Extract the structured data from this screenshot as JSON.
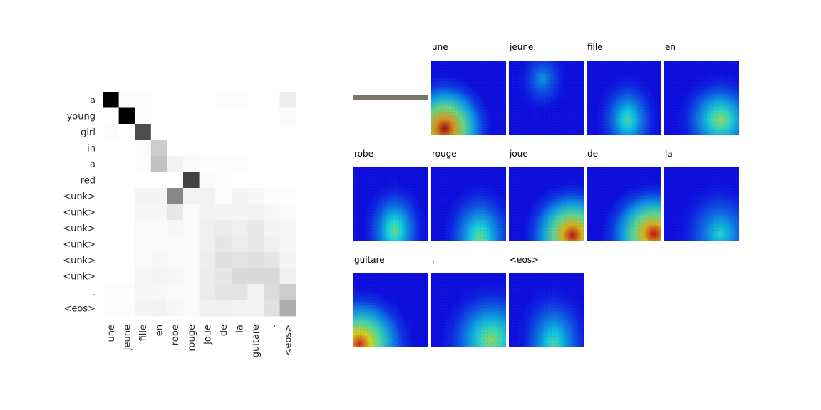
{
  "chart_data": [
    {
      "type": "heatmap",
      "title": "",
      "xlabel": "",
      "ylabel": "",
      "x_tick_labels": [
        "une",
        "jeune",
        "fille",
        "en",
        "robe",
        "rouge",
        "joue",
        "de",
        "la",
        "guitare",
        ".",
        "<eos>"
      ],
      "y_tick_labels": [
        "a",
        "young",
        "girl",
        "in",
        "a",
        "red",
        "<unk>",
        "<unk>",
        "<unk>",
        "<unk>",
        "<unk>",
        "<unk>",
        ".",
        "<eos>"
      ],
      "colormap": "Greys",
      "values": [
        [
          1.0,
          0.01,
          0.01,
          0.0,
          0.0,
          0.0,
          0.0,
          0.01,
          0.01,
          0.0,
          0.0,
          0.07
        ],
        [
          0.0,
          1.0,
          0.01,
          0.0,
          0.0,
          0.0,
          0.0,
          0.0,
          0.0,
          0.0,
          0.0,
          0.02
        ],
        [
          0.01,
          0.0,
          0.7,
          0.0,
          0.0,
          0.0,
          0.0,
          0.0,
          0.0,
          0.0,
          0.0,
          0.0
        ],
        [
          0.0,
          0.0,
          0.01,
          0.2,
          0.0,
          0.0,
          0.0,
          0.0,
          0.0,
          0.0,
          0.0,
          0.0
        ],
        [
          0.0,
          0.0,
          0.01,
          0.24,
          0.05,
          0.02,
          0.01,
          0.01,
          0.01,
          0.0,
          0.0,
          0.0
        ],
        [
          0.0,
          0.0,
          0.0,
          0.0,
          0.0,
          0.74,
          0.02,
          0.01,
          0.0,
          0.0,
          0.0,
          0.0
        ],
        [
          0.0,
          0.0,
          0.04,
          0.04,
          0.47,
          0.05,
          0.05,
          0.01,
          0.04,
          0.03,
          0.01,
          0.01
        ],
        [
          0.0,
          0.0,
          0.03,
          0.03,
          0.09,
          0.02,
          0.05,
          0.04,
          0.04,
          0.05,
          0.03,
          0.02
        ],
        [
          0.0,
          0.0,
          0.02,
          0.02,
          0.03,
          0.02,
          0.06,
          0.08,
          0.06,
          0.09,
          0.04,
          0.03
        ],
        [
          0.0,
          0.0,
          0.02,
          0.02,
          0.02,
          0.02,
          0.06,
          0.1,
          0.07,
          0.09,
          0.06,
          0.03
        ],
        [
          0.0,
          0.0,
          0.02,
          0.03,
          0.02,
          0.02,
          0.07,
          0.12,
          0.11,
          0.12,
          0.1,
          0.04
        ],
        [
          0.0,
          0.0,
          0.03,
          0.04,
          0.03,
          0.02,
          0.08,
          0.1,
          0.15,
          0.15,
          0.15,
          0.06
        ],
        [
          0.01,
          0.01,
          0.03,
          0.03,
          0.02,
          0.02,
          0.08,
          0.11,
          0.11,
          0.05,
          0.14,
          0.2
        ],
        [
          0.01,
          0.01,
          0.04,
          0.05,
          0.03,
          0.02,
          0.06,
          0.06,
          0.05,
          0.05,
          0.12,
          0.32
        ]
      ]
    },
    {
      "type": "heatmap",
      "title": "",
      "colormap": "jet",
      "panels": [
        {
          "label": "",
          "kind": "bar"
        },
        {
          "label": "une",
          "peak": [
            0.18,
            0.92
          ],
          "spread": 0.55,
          "max": 0.95
        },
        {
          "label": "jeune",
          "peak": [
            0.45,
            0.25
          ],
          "spread": 0.45,
          "max": 0.3
        },
        {
          "label": "fille",
          "peak": [
            0.55,
            0.8
          ],
          "spread": 0.55,
          "max": 0.45
        },
        {
          "label": "en",
          "peak": [
            0.75,
            0.8
          ],
          "spread": 0.55,
          "max": 0.55
        },
        {
          "label": "robe",
          "peak": [
            0.55,
            0.85
          ],
          "spread": 0.55,
          "max": 0.5
        },
        {
          "label": "rouge",
          "peak": [
            0.65,
            0.95
          ],
          "spread": 0.55,
          "max": 0.5
        },
        {
          "label": "joue",
          "peak": [
            0.85,
            0.92
          ],
          "spread": 0.55,
          "max": 0.9
        },
        {
          "label": "de",
          "peak": [
            0.9,
            0.9
          ],
          "spread": 0.55,
          "max": 0.9
        },
        {
          "label": "la",
          "peak": [
            0.75,
            0.9
          ],
          "spread": 0.55,
          "max": 0.4
        },
        {
          "label": "guitare",
          "peak": [
            0.08,
            0.95
          ],
          "spread": 0.55,
          "max": 0.85
        },
        {
          "label": ".",
          "peak": [
            0.8,
            0.9
          ],
          "spread": 0.6,
          "max": 0.55
        },
        {
          "label": "<eos>",
          "peak": [
            0.6,
            0.95
          ],
          "spread": 0.6,
          "max": 0.45
        }
      ]
    }
  ]
}
